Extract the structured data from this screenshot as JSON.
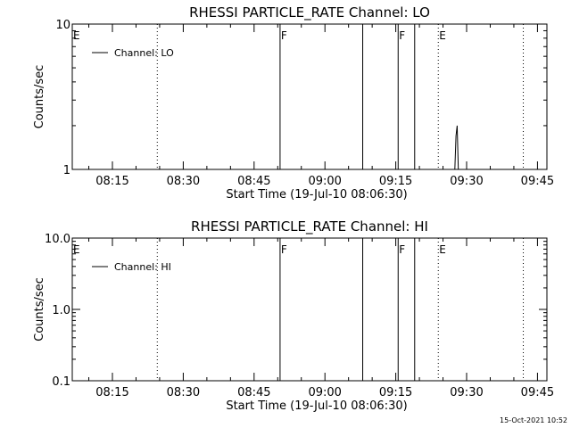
{
  "footer": {
    "timestamp": "15-Oct-2021 10:52"
  },
  "chart_data": [
    {
      "type": "line",
      "title": "RHESSI PARTICLE_RATE Channel: LO",
      "xlabel": "Start Time (19-Jul-10 08:06:30)",
      "ylabel": "Counts/sec",
      "yscale": "log",
      "ylim": [
        1,
        10
      ],
      "xlim": [
        "08:06:30",
        "09:47:00"
      ],
      "x_ticks": [
        "08:15",
        "08:30",
        "08:45",
        "09:00",
        "09:15",
        "09:30",
        "09:45"
      ],
      "y_ticks": [
        {
          "value": 1,
          "label": "1"
        },
        {
          "value": 10,
          "label": "10"
        }
      ],
      "legend": {
        "position": "top-left",
        "entries": [
          "Channel: LO"
        ]
      },
      "grid": false,
      "series": [
        {
          "name": "Channel: LO",
          "x": [
            "09:27:30",
            "09:27:45",
            "09:28:00",
            "09:28:15"
          ],
          "y": [
            1.0,
            1.7,
            2.0,
            1.0
          ]
        }
      ],
      "vlines": [
        {
          "time": "08:24:30",
          "style": "dotted"
        },
        {
          "time": "08:50:30",
          "style": "solid",
          "label": "F"
        },
        {
          "time": "09:08:00",
          "style": "solid"
        },
        {
          "time": "09:15:30",
          "style": "solid",
          "label": "F"
        },
        {
          "time": "09:19:00",
          "style": "solid"
        },
        {
          "time": "09:24:00",
          "style": "dotted",
          "label": "E"
        },
        {
          "time": "09:42:00",
          "style": "dotted"
        }
      ],
      "edge_flag": "E"
    },
    {
      "type": "line",
      "title": "RHESSI PARTICLE_RATE Channel: HI",
      "xlabel": "Start Time (19-Jul-10 08:06:30)",
      "ylabel": "Counts/sec",
      "yscale": "log",
      "ylim": [
        0.1,
        10
      ],
      "xlim": [
        "08:06:30",
        "09:47:00"
      ],
      "x_ticks": [
        "08:15",
        "08:30",
        "08:45",
        "09:00",
        "09:15",
        "09:30",
        "09:45"
      ],
      "y_ticks": [
        {
          "value": 0.1,
          "label": "0.1"
        },
        {
          "value": 1,
          "label": "1.0"
        },
        {
          "value": 10,
          "label": "10.0"
        }
      ],
      "legend": {
        "position": "top-left",
        "entries": [
          "Channel: HI"
        ]
      },
      "grid": false,
      "series": [
        {
          "name": "Channel: HI",
          "x": [],
          "y": []
        }
      ],
      "vlines": [
        {
          "time": "08:24:30",
          "style": "dotted"
        },
        {
          "time": "08:50:30",
          "style": "solid",
          "label": "F"
        },
        {
          "time": "09:08:00",
          "style": "solid"
        },
        {
          "time": "09:15:30",
          "style": "solid",
          "label": "F"
        },
        {
          "time": "09:19:00",
          "style": "solid"
        },
        {
          "time": "09:24:00",
          "style": "dotted",
          "label": "E"
        },
        {
          "time": "09:42:00",
          "style": "dotted"
        }
      ],
      "edge_flag": "E"
    }
  ]
}
